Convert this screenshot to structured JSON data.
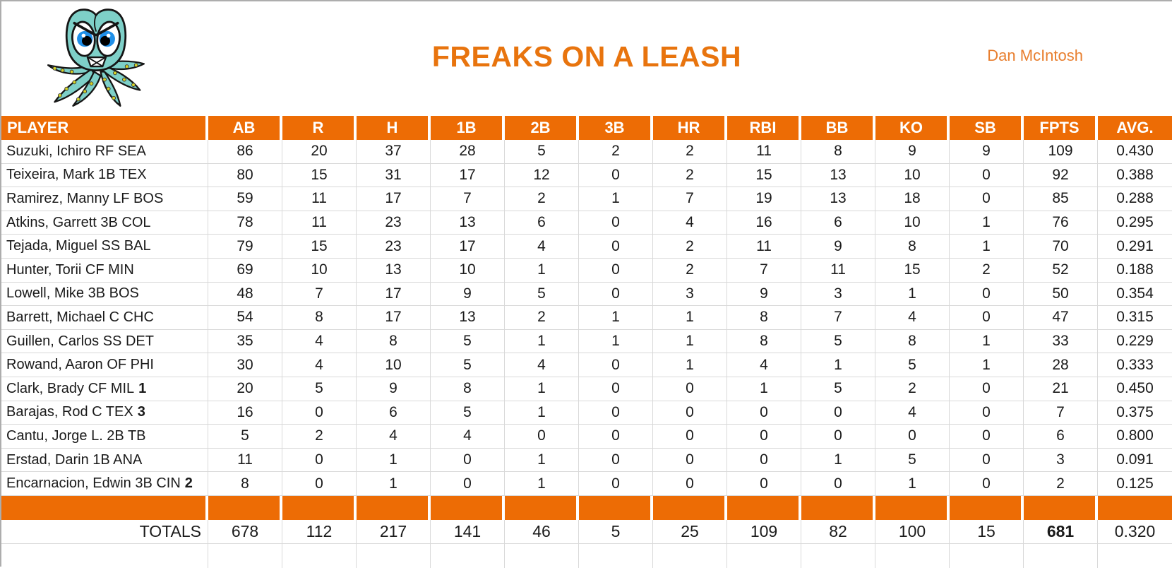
{
  "header": {
    "title": "FREAKS ON A LEASH",
    "owner": "Dan McIntosh"
  },
  "logo": {
    "name": "angry-squid-mascot"
  },
  "colors": {
    "header_fill": "#ED6C05",
    "title_text": "#E8740E",
    "owner_text": "#E87E2E",
    "grid_line": "#D9D9D9",
    "header_text": "#FFFFFF",
    "body_text": "#1A1A1A"
  },
  "table": {
    "columns": [
      "PLAYER",
      "AB",
      "R",
      "H",
      "1B",
      "2B",
      "3B",
      "HR",
      "RBI",
      "BB",
      "KO",
      "SB",
      "FPTS",
      "AVG."
    ],
    "players": [
      {
        "name": "Suzuki, Ichiro RF SEA",
        "flag": "",
        "stats": [
          86,
          20,
          37,
          28,
          5,
          2,
          2,
          11,
          8,
          9,
          9,
          109,
          "0.430"
        ]
      },
      {
        "name": "Teixeira, Mark 1B TEX",
        "flag": "",
        "stats": [
          80,
          15,
          31,
          17,
          12,
          0,
          2,
          15,
          13,
          10,
          0,
          92,
          "0.388"
        ]
      },
      {
        "name": "Ramirez, Manny LF BOS",
        "flag": "",
        "stats": [
          59,
          11,
          17,
          7,
          2,
          1,
          7,
          19,
          13,
          18,
          0,
          85,
          "0.288"
        ]
      },
      {
        "name": "Atkins, Garrett 3B COL",
        "flag": "",
        "stats": [
          78,
          11,
          23,
          13,
          6,
          0,
          4,
          16,
          6,
          10,
          1,
          76,
          "0.295"
        ]
      },
      {
        "name": "Tejada, Miguel SS BAL",
        "flag": "",
        "stats": [
          79,
          15,
          23,
          17,
          4,
          0,
          2,
          11,
          9,
          8,
          1,
          70,
          "0.291"
        ]
      },
      {
        "name": "Hunter, Torii CF MIN",
        "flag": "",
        "stats": [
          69,
          10,
          13,
          10,
          1,
          0,
          2,
          7,
          11,
          15,
          2,
          52,
          "0.188"
        ]
      },
      {
        "name": "Lowell, Mike 3B BOS",
        "flag": "",
        "stats": [
          48,
          7,
          17,
          9,
          5,
          0,
          3,
          9,
          3,
          1,
          0,
          50,
          "0.354"
        ]
      },
      {
        "name": "Barrett, Michael C CHC",
        "flag": "",
        "stats": [
          54,
          8,
          17,
          13,
          2,
          1,
          1,
          8,
          7,
          4,
          0,
          47,
          "0.315"
        ]
      },
      {
        "name": "Guillen, Carlos SS DET",
        "flag": "",
        "stats": [
          35,
          4,
          8,
          5,
          1,
          1,
          1,
          8,
          5,
          8,
          1,
          33,
          "0.229"
        ]
      },
      {
        "name": "Rowand, Aaron OF PHI",
        "flag": "",
        "stats": [
          30,
          4,
          10,
          5,
          4,
          0,
          1,
          4,
          1,
          5,
          1,
          28,
          "0.333"
        ]
      },
      {
        "name": "Clark, Brady CF MIL",
        "flag": "1",
        "stats": [
          20,
          5,
          9,
          8,
          1,
          0,
          0,
          1,
          5,
          2,
          0,
          21,
          "0.450"
        ]
      },
      {
        "name": "Barajas, Rod C TEX",
        "flag": "3",
        "stats": [
          16,
          0,
          6,
          5,
          1,
          0,
          0,
          0,
          0,
          4,
          0,
          7,
          "0.375"
        ]
      },
      {
        "name": "Cantu, Jorge L. 2B TB",
        "flag": "",
        "stats": [
          5,
          2,
          4,
          4,
          0,
          0,
          0,
          0,
          0,
          0,
          0,
          6,
          "0.800"
        ]
      },
      {
        "name": "Erstad, Darin 1B ANA",
        "flag": "",
        "stats": [
          11,
          0,
          1,
          0,
          1,
          0,
          0,
          0,
          1,
          5,
          0,
          3,
          "0.091"
        ]
      },
      {
        "name": "Encarnacion, Edwin 3B CIN",
        "flag": "2",
        "stats": [
          8,
          0,
          1,
          0,
          1,
          0,
          0,
          0,
          0,
          1,
          0,
          2,
          "0.125"
        ]
      }
    ],
    "totals": {
      "label": "TOTALS",
      "bold_column": "FPTS",
      "stats": [
        678,
        112,
        217,
        141,
        46,
        5,
        25,
        109,
        82,
        100,
        15,
        681,
        "0.320"
      ]
    }
  }
}
